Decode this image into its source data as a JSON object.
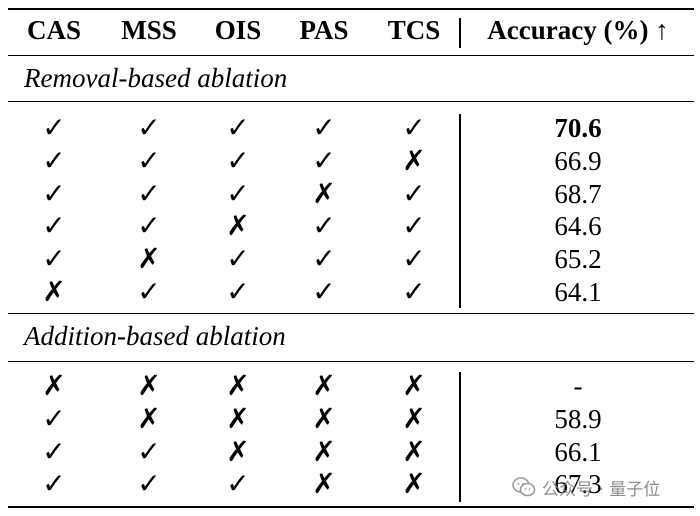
{
  "header": {
    "columns": [
      "CAS",
      "MSS",
      "OIS",
      "PAS",
      "TCS"
    ],
    "accuracy_label": "Accuracy (%)",
    "arrow": "↑"
  },
  "sections": [
    {
      "title": "Removal-based ablation",
      "rows": [
        {
          "marks": [
            "✓",
            "✓",
            "✓",
            "✓",
            "✓"
          ],
          "accuracy": "70.6",
          "best": true
        },
        {
          "marks": [
            "✓",
            "✓",
            "✓",
            "✓",
            "✗"
          ],
          "accuracy": "66.9",
          "best": false
        },
        {
          "marks": [
            "✓",
            "✓",
            "✓",
            "✗",
            "✓"
          ],
          "accuracy": "68.7",
          "best": false
        },
        {
          "marks": [
            "✓",
            "✓",
            "✗",
            "✓",
            "✓"
          ],
          "accuracy": "64.6",
          "best": false
        },
        {
          "marks": [
            "✓",
            "✗",
            "✓",
            "✓",
            "✓"
          ],
          "accuracy": "65.2",
          "best": false
        },
        {
          "marks": [
            "✗",
            "✓",
            "✓",
            "✓",
            "✓"
          ],
          "accuracy": "64.1",
          "best": false
        }
      ]
    },
    {
      "title": "Addition-based ablation",
      "rows": [
        {
          "marks": [
            "✗",
            "✗",
            "✗",
            "✗",
            "✗"
          ],
          "accuracy": "-",
          "best": false
        },
        {
          "marks": [
            "✓",
            "✗",
            "✗",
            "✗",
            "✗"
          ],
          "accuracy": "58.9",
          "best": false
        },
        {
          "marks": [
            "✓",
            "✓",
            "✗",
            "✗",
            "✗"
          ],
          "accuracy": "66.1",
          "best": false
        },
        {
          "marks": [
            "✓",
            "✓",
            "✓",
            "✗",
            "✗"
          ],
          "accuracy": "67.3",
          "best": false
        }
      ]
    }
  ],
  "watermark": {
    "text": "公众号 · 量子位",
    "icon": "wechat-icon"
  }
}
